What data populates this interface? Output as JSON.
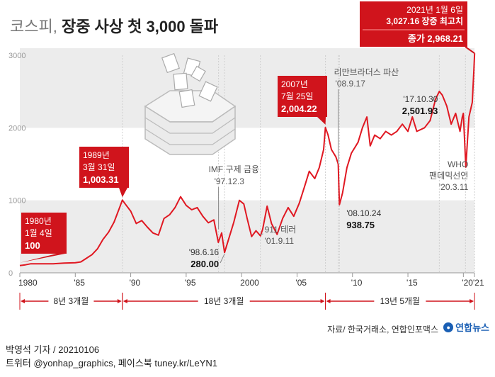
{
  "title": {
    "prefix": "코스피,",
    "main": "장중 사상 첫 3,000 돌파"
  },
  "chart_data": {
    "type": "line",
    "ylim": [
      0,
      3000
    ],
    "y_ticks": [
      0,
      1000,
      2000,
      3000
    ],
    "y_tick_labels": [
      "0",
      "1000",
      "2000",
      "3000"
    ],
    "x_range": [
      1980,
      2021
    ],
    "x_ticks": [
      1980,
      1985,
      1990,
      1995,
      2000,
      2005,
      2010,
      2015,
      2020,
      2021
    ],
    "x_tick_labels": [
      "1980",
      "'85",
      "'90",
      "'95",
      "2000",
      "'05",
      "'10",
      "'15",
      "'20",
      "'21"
    ],
    "series": [
      {
        "values": [
          [
            1980.0,
            100
          ],
          [
            1980.5,
            110
          ],
          [
            1981,
            125
          ],
          [
            1982,
            125
          ],
          [
            1983,
            125
          ],
          [
            1984,
            135
          ],
          [
            1985,
            140
          ],
          [
            1985.5,
            150
          ],
          [
            1986,
            200
          ],
          [
            1986.5,
            250
          ],
          [
            1987,
            330
          ],
          [
            1987.5,
            460
          ],
          [
            1988,
            560
          ],
          [
            1988.5,
            700
          ],
          [
            1989.0,
            900
          ],
          [
            1989.25,
            1003.31
          ],
          [
            1989.5,
            950
          ],
          [
            1990,
            850
          ],
          [
            1990.5,
            680
          ],
          [
            1991,
            720
          ],
          [
            1991.5,
            630
          ],
          [
            1992,
            550
          ],
          [
            1992.5,
            520
          ],
          [
            1993,
            750
          ],
          [
            1993.5,
            800
          ],
          [
            1994,
            900
          ],
          [
            1994.5,
            1050
          ],
          [
            1995,
            930
          ],
          [
            1995.5,
            870
          ],
          [
            1996,
            900
          ],
          [
            1996.5,
            780
          ],
          [
            1997,
            690
          ],
          [
            1997.5,
            730
          ],
          [
            1997.9,
            420
          ],
          [
            1998.2,
            550
          ],
          [
            1998.46,
            280.0
          ],
          [
            1998.8,
            450
          ],
          [
            1999.3,
            700
          ],
          [
            1999.8,
            1000
          ],
          [
            2000.2,
            950
          ],
          [
            2000.5,
            750
          ],
          [
            2000.9,
            500
          ],
          [
            2001.3,
            580
          ],
          [
            2001.7,
            510
          ],
          [
            2001.9,
            600
          ],
          [
            2002.3,
            920
          ],
          [
            2002.7,
            680
          ],
          [
            2003.2,
            530
          ],
          [
            2003.7,
            750
          ],
          [
            2004.2,
            900
          ],
          [
            2004.7,
            780
          ],
          [
            2005.2,
            960
          ],
          [
            2005.7,
            1200
          ],
          [
            2006.1,
            1400
          ],
          [
            2006.6,
            1300
          ],
          [
            2007.0,
            1450
          ],
          [
            2007.4,
            1700
          ],
          [
            2007.56,
            2004.22
          ],
          [
            2007.8,
            1900
          ],
          [
            2008.1,
            1700
          ],
          [
            2008.5,
            1600
          ],
          [
            2008.71,
            1500
          ],
          [
            2008.82,
            938.75
          ],
          [
            2009.1,
            1100
          ],
          [
            2009.5,
            1450
          ],
          [
            2009.9,
            1650
          ],
          [
            2010.5,
            1800
          ],
          [
            2010.9,
            2000
          ],
          [
            2011.3,
            2150
          ],
          [
            2011.6,
            1750
          ],
          [
            2012.0,
            1900
          ],
          [
            2012.5,
            1850
          ],
          [
            2013.0,
            1950
          ],
          [
            2013.5,
            1900
          ],
          [
            2014.0,
            1950
          ],
          [
            2014.5,
            2050
          ],
          [
            2015.0,
            1950
          ],
          [
            2015.4,
            2150
          ],
          [
            2015.8,
            1950
          ],
          [
            2016.5,
            2000
          ],
          [
            2017.0,
            2100
          ],
          [
            2017.5,
            2400
          ],
          [
            2017.83,
            2501.93
          ],
          [
            2018.1,
            2450
          ],
          [
            2018.5,
            2300
          ],
          [
            2018.9,
            2050
          ],
          [
            2019.3,
            2200
          ],
          [
            2019.7,
            1950
          ],
          [
            2019.9,
            2150
          ],
          [
            2020.0,
            2200
          ],
          [
            2020.22,
            1457
          ],
          [
            2020.5,
            2150
          ],
          [
            2020.8,
            2350
          ],
          [
            2020.95,
            2800
          ],
          [
            2021.01,
            3027.16
          ]
        ]
      }
    ],
    "annotations": [
      {
        "date": "1980년",
        "date2": "1월 4일",
        "value_text": "100",
        "x": 1980.0,
        "y": 100
      },
      {
        "date": "1989년",
        "date2": "3월 31일",
        "value_text": "1,003.31",
        "x": 1989.25,
        "y": 1003.31
      },
      {
        "date": "2007년",
        "date2": "7월 25일",
        "value_text": "2,004.22",
        "x": 2007.56,
        "y": 2004.22
      },
      {
        "date": "2021년 1월 6일",
        "date2": "3,027.16 장중 최고치",
        "value_text": "종가 2,968.21",
        "x": 2021.01,
        "y": 3027.16
      }
    ],
    "events": [
      {
        "label": "IMF 구제 금융",
        "date": "'97.12.3",
        "x": 1997.92
      },
      {
        "label": "리만브라더스 파산",
        "date": "'08.9.17",
        "x": 2008.71
      },
      {
        "label": "911 테러",
        "date": "'01.9.11",
        "x": 2001.69
      },
      {
        "label": "WHO",
        "label2": "팬데믹선언",
        "date": "'20.3.11",
        "x": 2020.19
      }
    ],
    "lows_highs": [
      {
        "date": "'98.6.16",
        "value_text": "280.00",
        "x": 1998.46,
        "y": 280.0
      },
      {
        "date": "'08.10.24",
        "value_text": "938.75",
        "x": 2008.82,
        "y": 938.75
      },
      {
        "date": "'17.10.30",
        "value_text": "2,501.93",
        "x": 2017.83,
        "y": 2501.93
      }
    ],
    "spans": [
      {
        "label": "8년 3개월",
        "from": 1980.0,
        "to": 1989.25
      },
      {
        "label": "18년 3개월",
        "from": 1989.25,
        "to": 2007.56
      },
      {
        "label": "13년 5개월",
        "from": 2007.56,
        "to": 2021.01
      }
    ],
    "colors": {
      "line": "#e01822",
      "callout": "#d0141c",
      "band": "#ececec",
      "tick": "#555555"
    }
  },
  "source": "자료/ 한국거래소, 연합인포맥스",
  "logo": "연합뉴스",
  "byline": {
    "line1": "박영석 기자 /  20210106",
    "line2": "트위터 @yonhap_graphics, 페이스북 tuney.kr/LeYN1"
  }
}
